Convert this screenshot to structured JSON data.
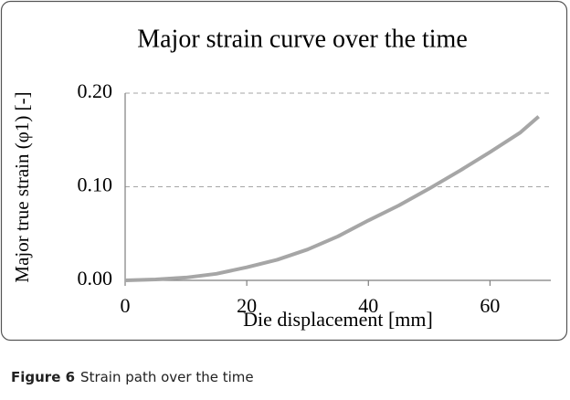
{
  "chart_data": {
    "type": "line",
    "title": "Major strain curve over the time",
    "x_label": "Die displacement [mm]",
    "y_label": "Major true strain (φ1) [-]",
    "x": [
      0,
      5,
      10,
      15,
      20,
      25,
      30,
      35,
      40,
      45,
      50,
      55,
      60,
      65,
      68
    ],
    "series": [
      {
        "name": "Major strain",
        "color": "#a6a6a6",
        "values": [
          0,
          0.001,
          0.003,
          0.007,
          0.014,
          0.022,
          0.033,
          0.047,
          0.064,
          0.08,
          0.098,
          0.117,
          0.137,
          0.158,
          0.175
        ]
      }
    ],
    "xlim": [
      0,
      70
    ],
    "xticks": [
      0,
      20,
      40,
      60
    ],
    "ylim": [
      0,
      0.2
    ],
    "yticks": [
      {
        "value": 0,
        "label": "0.00"
      },
      {
        "value": 0.1,
        "label": "0.10"
      },
      {
        "value": 0.2,
        "label": "0.20"
      }
    ],
    "grid": true
  },
  "caption": {
    "label": "Figure 6",
    "text": "Strain path over the time"
  }
}
